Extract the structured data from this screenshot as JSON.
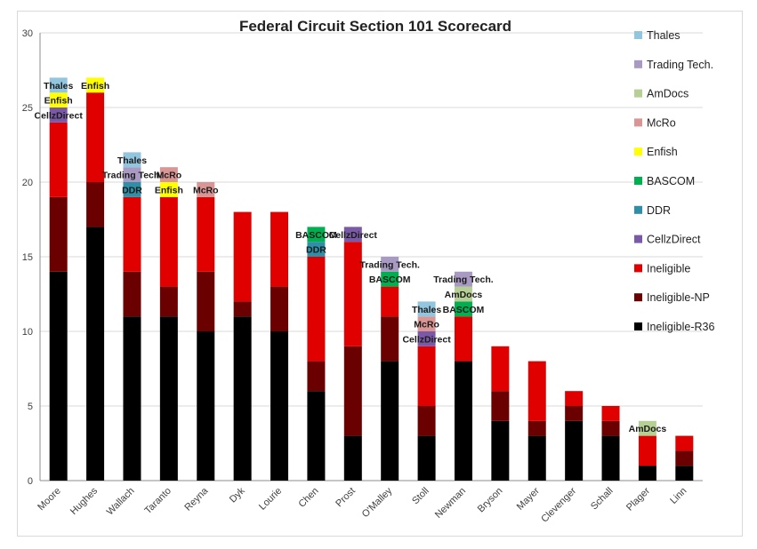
{
  "chart_data": {
    "type": "bar",
    "stacked": true,
    "title": "Federal Circuit Section 101 Scorecard",
    "xlabel": "",
    "ylabel": "",
    "ylim": [
      0,
      30
    ],
    "yticks": [
      0,
      5,
      10,
      15,
      20,
      25,
      30
    ],
    "grid": true,
    "legend_position": "right",
    "categories": [
      "Moore",
      "Hughes",
      "Wallach",
      "Taranto",
      "Reyna",
      "Dyk",
      "Lourie",
      "Chen",
      "Prost",
      "O'Malley",
      "Stoll",
      "Newman",
      "Bryson",
      "Mayer",
      "Clevenger",
      "Schall",
      "Plager",
      "Linn"
    ],
    "series": [
      {
        "name": "Ineligible-R36",
        "color": "#000000",
        "values": [
          14,
          17,
          11,
          11,
          10,
          11,
          10,
          6,
          3,
          8,
          3,
          8,
          4,
          3,
          4,
          3,
          1,
          1
        ]
      },
      {
        "name": "Ineligible-NP",
        "color": "#6b0000",
        "values": [
          5,
          3,
          3,
          2,
          4,
          1,
          3,
          2,
          6,
          3,
          2,
          0,
          2,
          1,
          1,
          1,
          0,
          1
        ]
      },
      {
        "name": "Ineligible",
        "color": "#e00000",
        "values": [
          5,
          6,
          5,
          6,
          5,
          6,
          5,
          7,
          7,
          2,
          4,
          3,
          3,
          4,
          1,
          1,
          2,
          1
        ]
      },
      {
        "name": "CellzDirect",
        "color": "#7a5aa6",
        "values": [
          1,
          0,
          0,
          0,
          0,
          0,
          0,
          0,
          1,
          0,
          1,
          0,
          0,
          0,
          0,
          0,
          0,
          0
        ]
      },
      {
        "name": "DDR",
        "color": "#2e8fa6",
        "values": [
          0,
          0,
          1,
          0,
          0,
          0,
          0,
          1,
          0,
          0,
          0,
          0,
          0,
          0,
          0,
          0,
          0,
          0
        ]
      },
      {
        "name": "BASCOM",
        "color": "#00b050",
        "values": [
          0,
          0,
          0,
          0,
          0,
          0,
          0,
          1,
          0,
          1,
          0,
          1,
          0,
          0,
          0,
          0,
          0,
          0
        ]
      },
      {
        "name": "Enfish",
        "color": "#ffff00",
        "values": [
          1,
          1,
          0,
          1,
          0,
          0,
          0,
          0,
          0,
          0,
          0,
          0,
          0,
          0,
          0,
          0,
          0,
          0
        ]
      },
      {
        "name": "McRo",
        "color": "#d99694",
        "values": [
          0,
          0,
          0,
          1,
          1,
          0,
          0,
          0,
          0,
          0,
          1,
          0,
          0,
          0,
          0,
          0,
          0,
          0
        ]
      },
      {
        "name": "AmDocs",
        "color": "#b5cf95",
        "values": [
          0,
          0,
          0,
          0,
          0,
          0,
          0,
          0,
          0,
          0,
          0,
          1,
          0,
          0,
          0,
          0,
          1,
          0
        ]
      },
      {
        "name": "Trading Tech.",
        "color": "#a89ac2",
        "values": [
          0,
          0,
          1,
          0,
          0,
          0,
          0,
          0,
          0,
          1,
          0,
          1,
          0,
          0,
          0,
          0,
          0,
          0
        ]
      },
      {
        "name": "Thales",
        "color": "#92c5de",
        "values": [
          1,
          0,
          1,
          0,
          0,
          0,
          0,
          0,
          0,
          0,
          1,
          0,
          0,
          0,
          0,
          0,
          0,
          0
        ]
      }
    ],
    "legend_order": [
      "Thales",
      "Trading Tech.",
      "AmDocs",
      "McRo",
      "Enfish",
      "BASCOM",
      "DDR",
      "CellzDirect",
      "Ineligible",
      "Ineligible-NP",
      "Ineligible-R36"
    ],
    "labeled_series": [
      "CellzDirect",
      "DDR",
      "BASCOM",
      "Enfish",
      "McRo",
      "AmDocs",
      "Trading Tech.",
      "Thales"
    ]
  }
}
